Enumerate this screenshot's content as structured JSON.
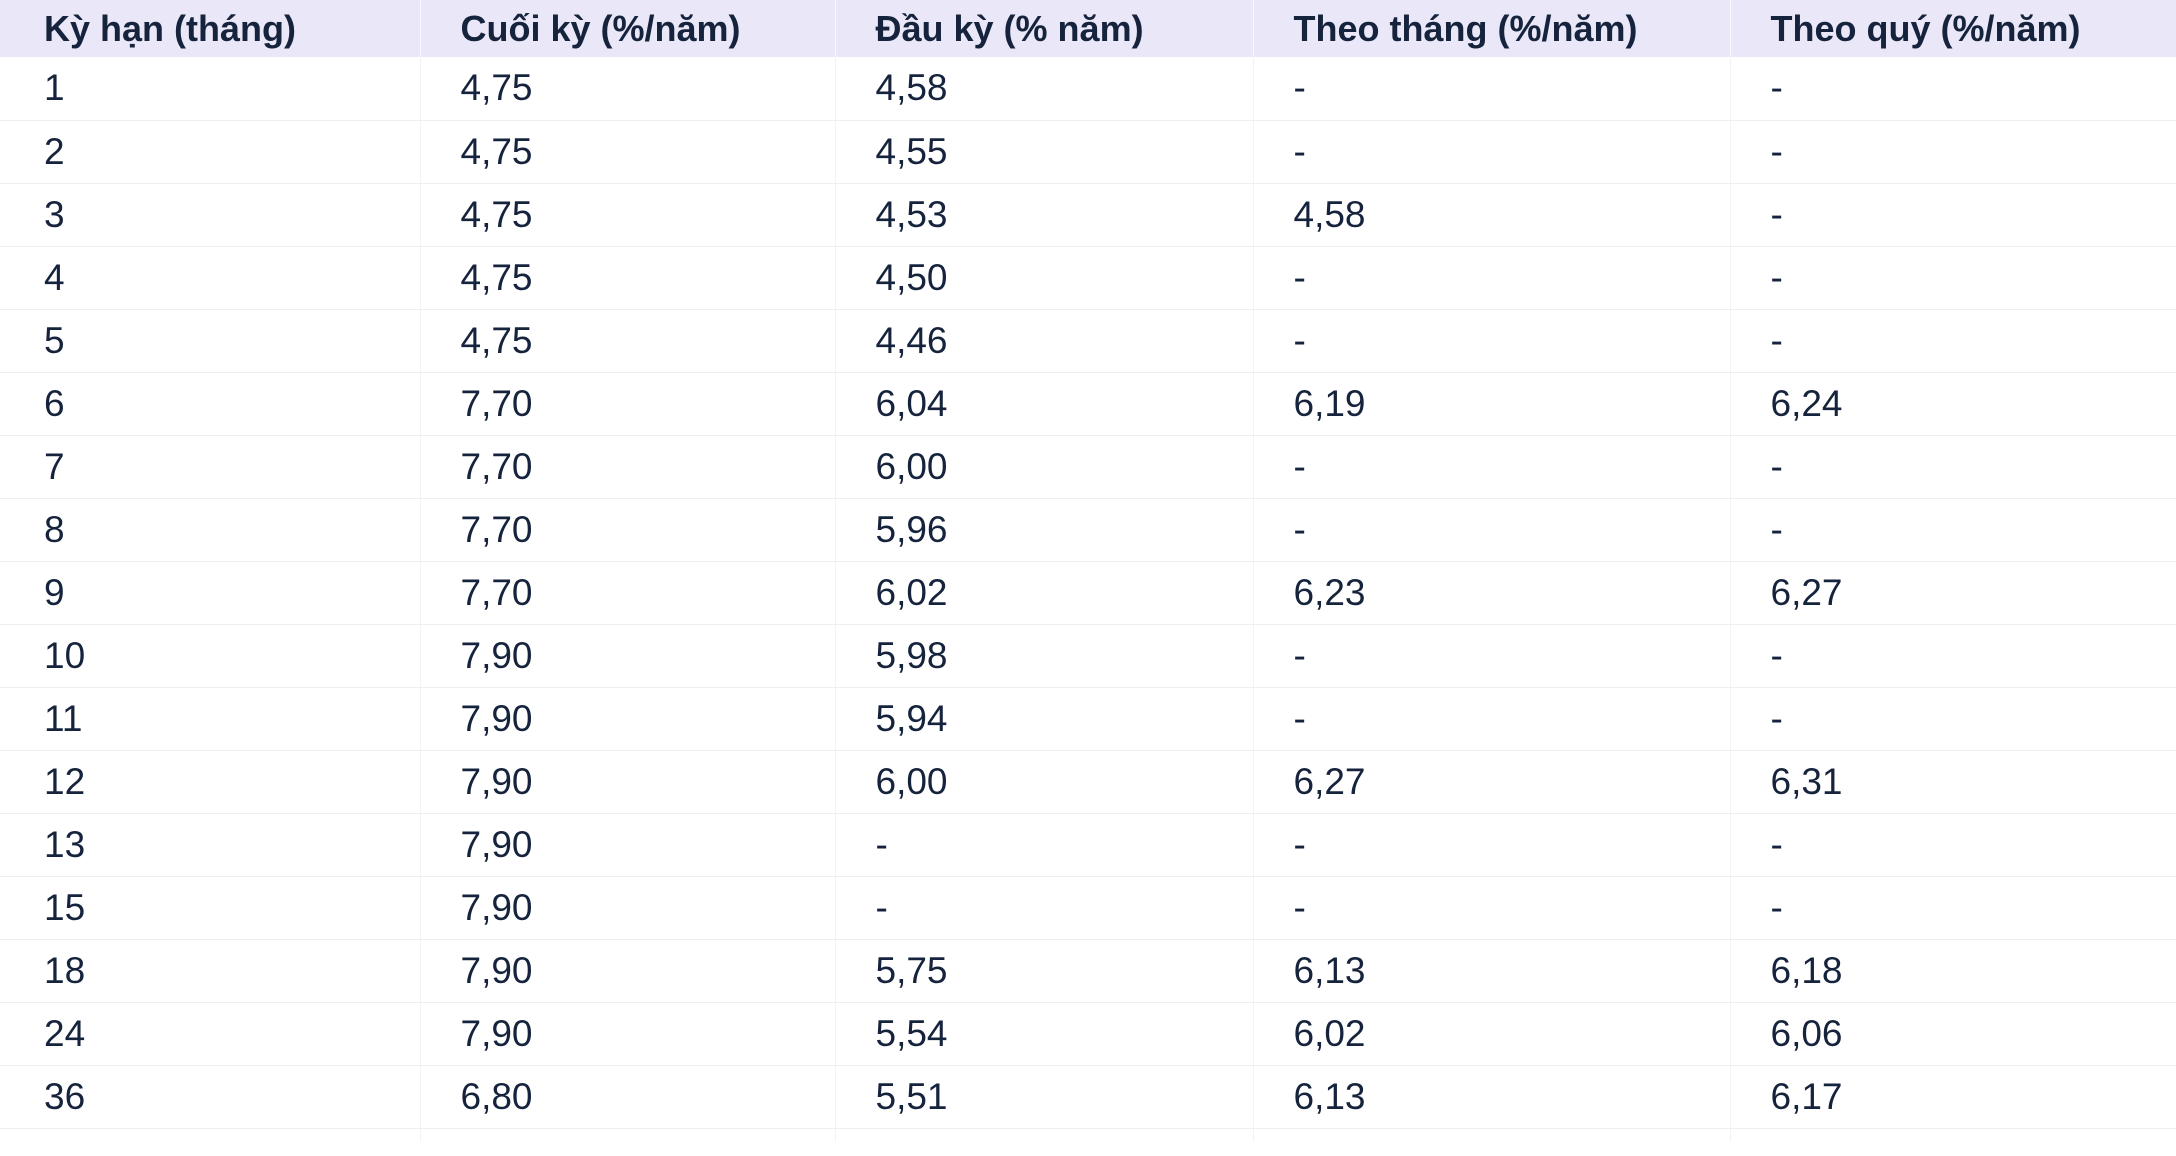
{
  "table": {
    "columns": [
      "Kỳ hạn (tháng)",
      "Cuối kỳ (%/năm)",
      "Đầu kỳ (% năm)",
      "Theo tháng (%/năm)",
      "Theo quý (%/năm)"
    ],
    "rows": [
      [
        "1",
        "4,75",
        "4,58",
        "-",
        "-"
      ],
      [
        "2",
        "4,75",
        "4,55",
        "-",
        "-"
      ],
      [
        "3",
        "4,75",
        "4,53",
        "4,58",
        "-"
      ],
      [
        "4",
        "4,75",
        "4,50",
        "-",
        "-"
      ],
      [
        "5",
        "4,75",
        "4,46",
        "-",
        "-"
      ],
      [
        "6",
        "7,70",
        "6,04",
        "6,19",
        "6,24"
      ],
      [
        "7",
        "7,70",
        "6,00",
        "-",
        "-"
      ],
      [
        "8",
        "7,70",
        "5,96",
        "-",
        "-"
      ],
      [
        "9",
        "7,70",
        "6,02",
        "6,23",
        "6,27"
      ],
      [
        "10",
        "7,90",
        "5,98",
        "-",
        "-"
      ],
      [
        "11",
        "7,90",
        "5,94",
        "-",
        "-"
      ],
      [
        "12",
        "7,90",
        "6,00",
        "6,27",
        "6,31"
      ],
      [
        "13",
        "7,90",
        "-",
        "-",
        "-"
      ],
      [
        "15",
        "7,90",
        "-",
        "-",
        "-"
      ],
      [
        "18",
        "7,90",
        "5,75",
        "6,13",
        "6,18"
      ],
      [
        "24",
        "7,90",
        "5,54",
        "6,02",
        "6,06"
      ],
      [
        "36",
        "6,80",
        "5,51",
        "6,13",
        "6,17"
      ]
    ]
  },
  "chart_data": {
    "type": "table",
    "columns": [
      "Kỳ hạn (tháng)",
      "Cuối kỳ (%/năm)",
      "Đầu kỳ (% năm)",
      "Theo tháng (%/năm)",
      "Theo quý (%/năm)"
    ],
    "rows": [
      [
        "1",
        "4,75",
        "4,58",
        "-",
        "-"
      ],
      [
        "2",
        "4,75",
        "4,55",
        "-",
        "-"
      ],
      [
        "3",
        "4,75",
        "4,53",
        "4,58",
        "-"
      ],
      [
        "4",
        "4,75",
        "4,50",
        "-",
        "-"
      ],
      [
        "5",
        "4,75",
        "4,46",
        "-",
        "-"
      ],
      [
        "6",
        "7,70",
        "6,04",
        "6,19",
        "6,24"
      ],
      [
        "7",
        "7,70",
        "6,00",
        "-",
        "-"
      ],
      [
        "8",
        "7,70",
        "5,96",
        "-",
        "-"
      ],
      [
        "9",
        "7,70",
        "6,02",
        "6,23",
        "6,27"
      ],
      [
        "10",
        "7,90",
        "5,98",
        "-",
        "-"
      ],
      [
        "11",
        "7,90",
        "5,94",
        "-",
        "-"
      ],
      [
        "12",
        "7,90",
        "6,00",
        "6,27",
        "6,31"
      ],
      [
        "13",
        "7,90",
        "-",
        "-",
        "-"
      ],
      [
        "15",
        "7,90",
        "-",
        "-",
        "-"
      ],
      [
        "18",
        "7,90",
        "5,75",
        "6,13",
        "6,18"
      ],
      [
        "24",
        "7,90",
        "5,54",
        "6,02",
        "6,06"
      ],
      [
        "36",
        "6,80",
        "5,51",
        "6,13",
        "6,17"
      ]
    ]
  },
  "colors": {
    "header_bg": "#eae8f8",
    "text": "#16233c",
    "row_bg": "#ffffff",
    "row_border": "#efeef3",
    "column_border": "#f3f2f6"
  }
}
